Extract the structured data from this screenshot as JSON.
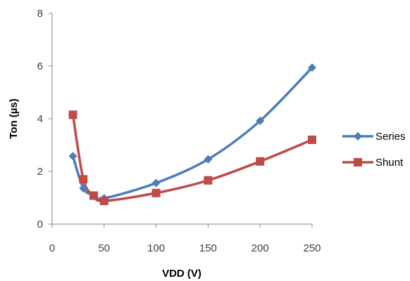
{
  "chart_data": {
    "type": "line",
    "xlabel": "VDD (V)",
    "ylabel": "Ton (µs)",
    "xlim": [
      0,
      250
    ],
    "ylim": [
      0,
      8
    ],
    "xticks": [
      0,
      50,
      100,
      150,
      200,
      250
    ],
    "yticks": [
      0,
      2,
      4,
      6,
      8
    ],
    "grid": false,
    "legend_position": "right",
    "series": [
      {
        "name": "Series",
        "color": "#4a7ebb",
        "marker": "diamond",
        "points": [
          {
            "x": 20,
            "y": 2.58
          },
          {
            "x": 30,
            "y": 1.36
          },
          {
            "x": 40,
            "y": 1.1
          },
          {
            "x": 50,
            "y": 0.98
          },
          {
            "x": 100,
            "y": 1.56
          },
          {
            "x": 150,
            "y": 2.46
          },
          {
            "x": 200,
            "y": 3.92
          },
          {
            "x": 250,
            "y": 5.94
          }
        ]
      },
      {
        "name": "Shunt",
        "color": "#be4b48",
        "marker": "square",
        "points": [
          {
            "x": 20,
            "y": 4.15
          },
          {
            "x": 30,
            "y": 1.7
          },
          {
            "x": 40,
            "y": 1.08
          },
          {
            "x": 50,
            "y": 0.88
          },
          {
            "x": 100,
            "y": 1.18
          },
          {
            "x": 150,
            "y": 1.66
          },
          {
            "x": 200,
            "y": 2.38
          },
          {
            "x": 250,
            "y": 3.2
          }
        ]
      }
    ]
  }
}
